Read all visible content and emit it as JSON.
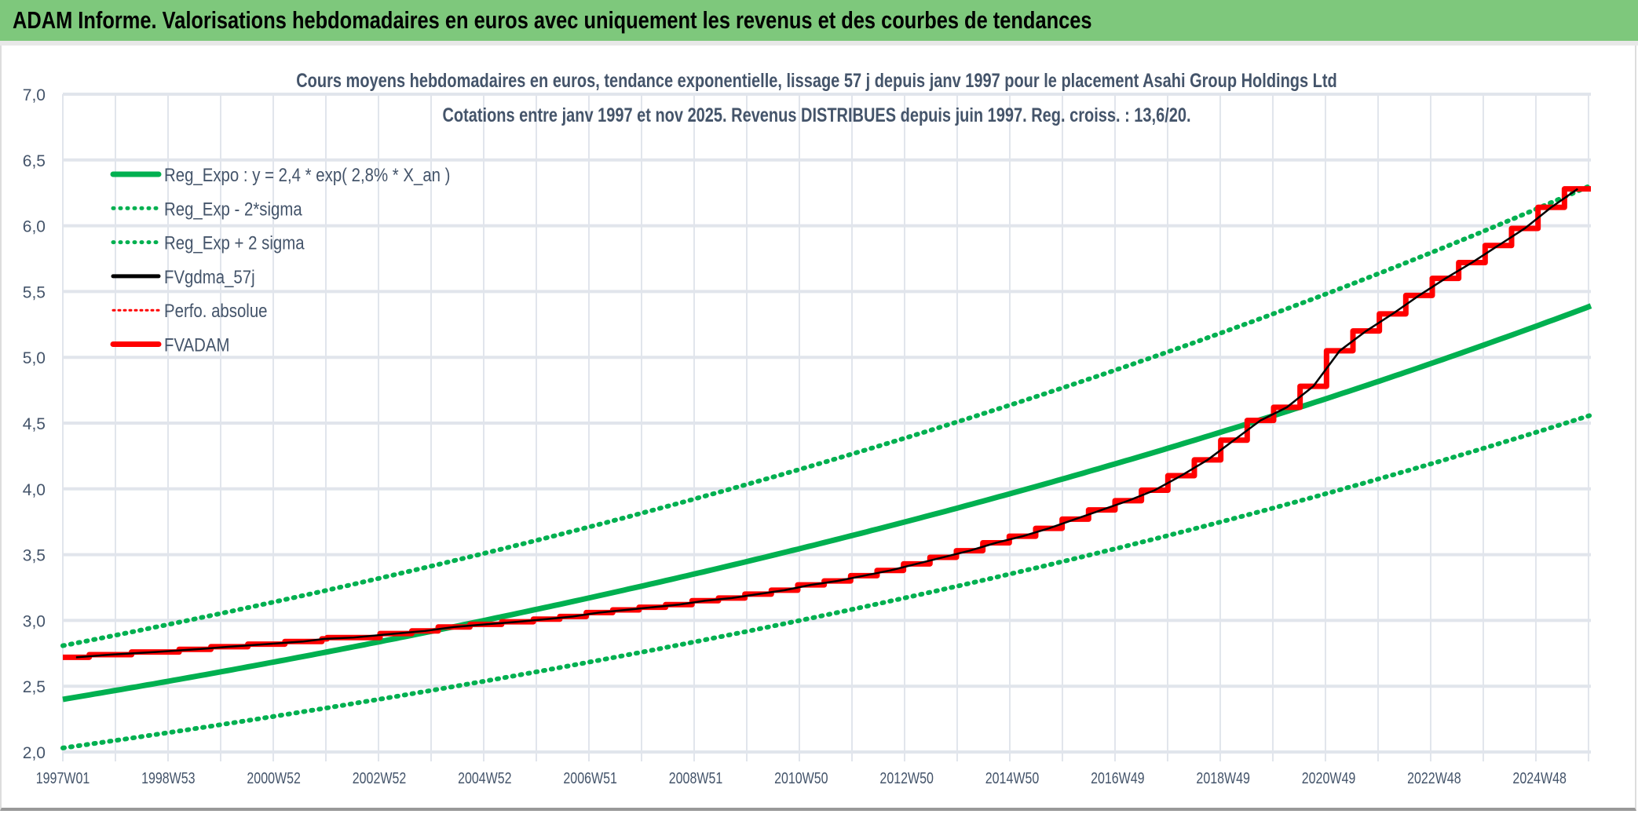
{
  "header": {
    "title": "ADAM Informe. Valorisations hebdomadaires en euros avec uniquement les revenus et des courbes de tendances"
  },
  "colors": {
    "green": "#00b050",
    "black": "#000000",
    "red": "#ff0000",
    "grid": "#e1e5ec",
    "text": "#44546a",
    "titlebar": "#7ec87c"
  },
  "chart_data": {
    "type": "line",
    "title": "Cours moyens hebdomadaires en euros, tendance exponentielle, lissage 57 j depuis janv 1997 pour le placement Asahi Group Holdings Ltd",
    "subtitle": "Cotations entre janv 1997 et nov 2025. Revenus DISTRIBUES depuis juin 1997. Reg. croiss. : 13,6/20.",
    "xlabel": "",
    "ylabel": "",
    "ylim": [
      2.0,
      7.0
    ],
    "yticks": [
      "2,0",
      "2,5",
      "3,0",
      "3,5",
      "4,0",
      "4,5",
      "5,0",
      "5,5",
      "6,0",
      "6,5",
      "7,0"
    ],
    "xlim_years": [
      1997.0,
      2025.9
    ],
    "xtick_labels": [
      "1997W01",
      "1998W53",
      "2000W52",
      "2002W52",
      "2004W52",
      "2006W51",
      "2008W51",
      "2010W50",
      "2012W50",
      "2014W50",
      "2016W49",
      "2018W49",
      "2020W49",
      "2022W48",
      "2024W48"
    ],
    "grid": true,
    "legend_position": "top-left",
    "regression": {
      "a": 2.4,
      "rate": 0.028,
      "upper_factor": 1.17,
      "lower_factor": 0.846
    },
    "series": [
      {
        "name": "Reg_Expo : y = 2,4 * exp( 2,8% *  X_an )",
        "style": "solid-green"
      },
      {
        "name": "Reg_Exp - 2*sigma",
        "style": "dotted-green"
      },
      {
        "name": "Reg_Exp + 2 sigma",
        "style": "dotted-green"
      },
      {
        "name": "FVgdma_57j",
        "style": "solid-black"
      },
      {
        "name": "Perfo. absolue",
        "style": "dotted-red"
      },
      {
        "name": "FVADAM",
        "style": "solid-red",
        "steps": [
          [
            1997.0,
            2.72
          ],
          [
            1997.5,
            2.74
          ],
          [
            1998.3,
            2.76
          ],
          [
            1999.2,
            2.78
          ],
          [
            1999.8,
            2.8
          ],
          [
            2000.5,
            2.82
          ],
          [
            2001.2,
            2.84
          ],
          [
            2001.9,
            2.86
          ],
          [
            2002.0,
            2.87
          ],
          [
            2003.0,
            2.9
          ],
          [
            2003.6,
            2.92
          ],
          [
            2004.1,
            2.95
          ],
          [
            2004.7,
            2.97
          ],
          [
            2005.3,
            2.99
          ],
          [
            2005.9,
            3.01
          ],
          [
            2006.4,
            3.03
          ],
          [
            2006.9,
            3.06
          ],
          [
            2007.4,
            3.08
          ],
          [
            2007.9,
            3.1
          ],
          [
            2008.4,
            3.12
          ],
          [
            2008.9,
            3.15
          ],
          [
            2009.4,
            3.17
          ],
          [
            2009.9,
            3.2
          ],
          [
            2010.4,
            3.23
          ],
          [
            2010.9,
            3.27
          ],
          [
            2011.4,
            3.3
          ],
          [
            2011.9,
            3.34
          ],
          [
            2012.4,
            3.38
          ],
          [
            2012.9,
            3.43
          ],
          [
            2013.4,
            3.48
          ],
          [
            2013.9,
            3.53
          ],
          [
            2014.4,
            3.59
          ],
          [
            2014.9,
            3.64
          ],
          [
            2015.4,
            3.7
          ],
          [
            2015.9,
            3.77
          ],
          [
            2016.4,
            3.84
          ],
          [
            2016.9,
            3.91
          ],
          [
            2017.4,
            3.99
          ],
          [
            2017.9,
            4.1
          ],
          [
            2018.4,
            4.22
          ],
          [
            2018.9,
            4.37
          ],
          [
            2019.4,
            4.52
          ],
          [
            2019.9,
            4.62
          ],
          [
            2020.4,
            4.78
          ],
          [
            2020.9,
            5.05
          ],
          [
            2021.4,
            5.2
          ],
          [
            2021.9,
            5.33
          ],
          [
            2022.4,
            5.47
          ],
          [
            2022.9,
            5.6
          ],
          [
            2023.4,
            5.72
          ],
          [
            2023.9,
            5.85
          ],
          [
            2024.4,
            5.98
          ],
          [
            2024.9,
            6.14
          ],
          [
            2025.4,
            6.28
          ]
        ]
      }
    ]
  }
}
